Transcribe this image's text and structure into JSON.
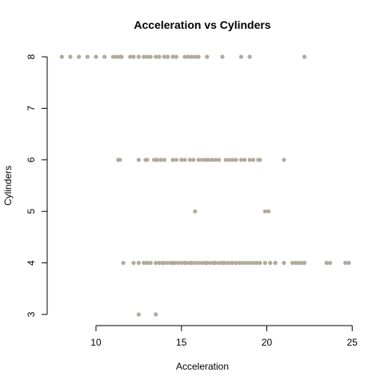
{
  "chart_data": {
    "type": "scatter",
    "title": "Acceleration vs Cylinders",
    "xlabel": "Acceleration",
    "ylabel": "Cylinders",
    "xlim": [
      7.8,
      24.8
    ],
    "ylim": [
      3,
      8
    ],
    "x_ticks": [
      10,
      15,
      20,
      25
    ],
    "y_ticks": [
      3,
      4,
      5,
      6,
      7,
      8
    ],
    "grid": false,
    "point_color": "#b2ab9a",
    "points": [
      {
        "x": 8.0,
        "y": 8
      },
      {
        "x": 8.5,
        "y": 8
      },
      {
        "x": 9.0,
        "y": 8
      },
      {
        "x": 9.5,
        "y": 8
      },
      {
        "x": 10.0,
        "y": 8
      },
      {
        "x": 10.5,
        "y": 8
      },
      {
        "x": 11.0,
        "y": 8
      },
      {
        "x": 11.2,
        "y": 8
      },
      {
        "x": 11.4,
        "y": 8
      },
      {
        "x": 11.5,
        "y": 8
      },
      {
        "x": 12.0,
        "y": 8
      },
      {
        "x": 12.2,
        "y": 8
      },
      {
        "x": 12.5,
        "y": 8
      },
      {
        "x": 12.8,
        "y": 8
      },
      {
        "x": 13.0,
        "y": 8
      },
      {
        "x": 13.2,
        "y": 8
      },
      {
        "x": 13.5,
        "y": 8
      },
      {
        "x": 13.7,
        "y": 8
      },
      {
        "x": 14.0,
        "y": 8
      },
      {
        "x": 14.2,
        "y": 8
      },
      {
        "x": 14.5,
        "y": 8
      },
      {
        "x": 14.7,
        "y": 8
      },
      {
        "x": 15.2,
        "y": 8
      },
      {
        "x": 15.4,
        "y": 8
      },
      {
        "x": 15.6,
        "y": 8
      },
      {
        "x": 15.8,
        "y": 8
      },
      {
        "x": 16.0,
        "y": 8
      },
      {
        "x": 16.5,
        "y": 8
      },
      {
        "x": 17.4,
        "y": 8
      },
      {
        "x": 18.5,
        "y": 8
      },
      {
        "x": 19.0,
        "y": 8
      },
      {
        "x": 22.2,
        "y": 8
      },
      {
        "x": 11.3,
        "y": 6
      },
      {
        "x": 11.4,
        "y": 6
      },
      {
        "x": 12.5,
        "y": 6
      },
      {
        "x": 12.9,
        "y": 6
      },
      {
        "x": 13.0,
        "y": 6
      },
      {
        "x": 13.4,
        "y": 6
      },
      {
        "x": 13.5,
        "y": 6
      },
      {
        "x": 13.6,
        "y": 6
      },
      {
        "x": 13.8,
        "y": 6
      },
      {
        "x": 14.0,
        "y": 6
      },
      {
        "x": 14.5,
        "y": 6
      },
      {
        "x": 14.7,
        "y": 6
      },
      {
        "x": 15.0,
        "y": 6
      },
      {
        "x": 15.2,
        "y": 6
      },
      {
        "x": 15.5,
        "y": 6
      },
      {
        "x": 15.7,
        "y": 6
      },
      {
        "x": 16.0,
        "y": 6
      },
      {
        "x": 16.2,
        "y": 6
      },
      {
        "x": 16.4,
        "y": 6
      },
      {
        "x": 16.5,
        "y": 6
      },
      {
        "x": 16.6,
        "y": 6
      },
      {
        "x": 16.8,
        "y": 6
      },
      {
        "x": 17.0,
        "y": 6
      },
      {
        "x": 17.2,
        "y": 6
      },
      {
        "x": 17.6,
        "y": 6
      },
      {
        "x": 17.8,
        "y": 6
      },
      {
        "x": 18.0,
        "y": 6
      },
      {
        "x": 18.2,
        "y": 6
      },
      {
        "x": 18.5,
        "y": 6
      },
      {
        "x": 18.7,
        "y": 6
      },
      {
        "x": 19.0,
        "y": 6
      },
      {
        "x": 19.2,
        "y": 6
      },
      {
        "x": 19.5,
        "y": 6
      },
      {
        "x": 19.6,
        "y": 6
      },
      {
        "x": 21.0,
        "y": 6
      },
      {
        "x": 15.8,
        "y": 5
      },
      {
        "x": 19.9,
        "y": 5
      },
      {
        "x": 20.1,
        "y": 5
      },
      {
        "x": 11.6,
        "y": 4
      },
      {
        "x": 12.2,
        "y": 4
      },
      {
        "x": 12.5,
        "y": 4
      },
      {
        "x": 12.8,
        "y": 4
      },
      {
        "x": 13.0,
        "y": 4
      },
      {
        "x": 13.2,
        "y": 4
      },
      {
        "x": 13.5,
        "y": 4
      },
      {
        "x": 13.7,
        "y": 4
      },
      {
        "x": 13.9,
        "y": 4
      },
      {
        "x": 14.0,
        "y": 4
      },
      {
        "x": 14.2,
        "y": 4
      },
      {
        "x": 14.4,
        "y": 4
      },
      {
        "x": 14.5,
        "y": 4
      },
      {
        "x": 14.6,
        "y": 4
      },
      {
        "x": 14.8,
        "y": 4
      },
      {
        "x": 15.0,
        "y": 4
      },
      {
        "x": 15.2,
        "y": 4
      },
      {
        "x": 15.3,
        "y": 4
      },
      {
        "x": 15.5,
        "y": 4
      },
      {
        "x": 15.6,
        "y": 4
      },
      {
        "x": 15.8,
        "y": 4
      },
      {
        "x": 16.0,
        "y": 4
      },
      {
        "x": 16.2,
        "y": 4
      },
      {
        "x": 16.4,
        "y": 4
      },
      {
        "x": 16.5,
        "y": 4
      },
      {
        "x": 16.7,
        "y": 4
      },
      {
        "x": 16.9,
        "y": 4
      },
      {
        "x": 17.0,
        "y": 4
      },
      {
        "x": 17.2,
        "y": 4
      },
      {
        "x": 17.4,
        "y": 4
      },
      {
        "x": 17.5,
        "y": 4
      },
      {
        "x": 17.7,
        "y": 4
      },
      {
        "x": 17.9,
        "y": 4
      },
      {
        "x": 18.0,
        "y": 4
      },
      {
        "x": 18.2,
        "y": 4
      },
      {
        "x": 18.4,
        "y": 4
      },
      {
        "x": 18.6,
        "y": 4
      },
      {
        "x": 18.8,
        "y": 4
      },
      {
        "x": 19.0,
        "y": 4
      },
      {
        "x": 19.2,
        "y": 4
      },
      {
        "x": 19.4,
        "y": 4
      },
      {
        "x": 19.6,
        "y": 4
      },
      {
        "x": 19.9,
        "y": 4
      },
      {
        "x": 20.2,
        "y": 4
      },
      {
        "x": 20.5,
        "y": 4
      },
      {
        "x": 21.0,
        "y": 4
      },
      {
        "x": 21.5,
        "y": 4
      },
      {
        "x": 21.7,
        "y": 4
      },
      {
        "x": 21.9,
        "y": 4
      },
      {
        "x": 22.1,
        "y": 4
      },
      {
        "x": 22.2,
        "y": 4
      },
      {
        "x": 23.5,
        "y": 4
      },
      {
        "x": 23.7,
        "y": 4
      },
      {
        "x": 24.6,
        "y": 4
      },
      {
        "x": 24.8,
        "y": 4
      },
      {
        "x": 12.5,
        "y": 3
      },
      {
        "x": 13.5,
        "y": 3
      }
    ]
  }
}
